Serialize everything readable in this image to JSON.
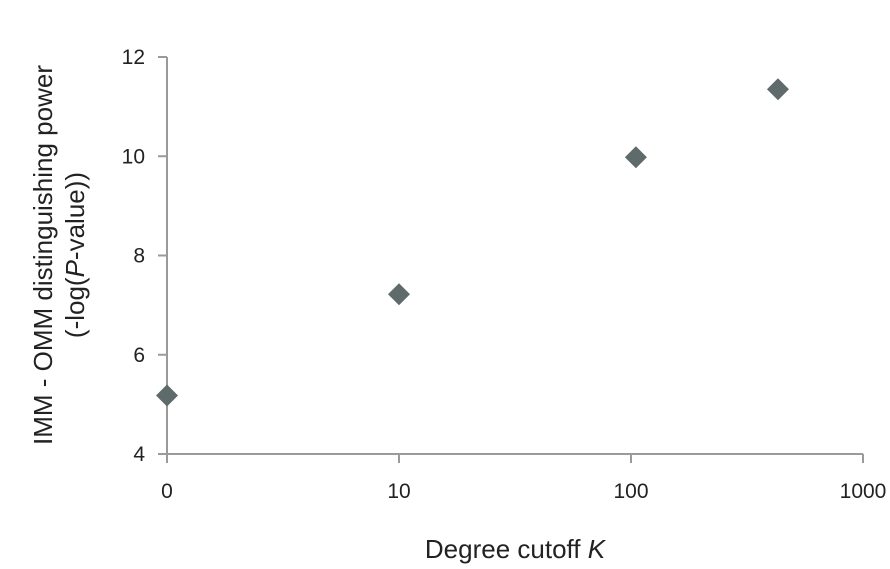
{
  "chart_data": {
    "type": "scatter",
    "xscale": "log",
    "xticks": [
      1,
      10,
      100,
      1000
    ],
    "xtick_labels": [
      "0",
      "10",
      "100",
      "1000"
    ],
    "xlim": [
      1,
      1000
    ],
    "yticks": [
      4,
      6,
      8,
      10,
      12
    ],
    "yticklabels": [
      "4",
      "6",
      "8",
      "10",
      "12"
    ],
    "ylim": [
      4,
      12
    ],
    "xlabel_main": "Degree cutoff ",
    "xlabel_italic": "K",
    "ylabel_line1": "IMM - OMM distinguishing power",
    "ylabel_line2_pre": "(-log(",
    "ylabel_line2_italic": "P",
    "ylabel_line2_post": "-value))",
    "grid": false,
    "legend": "none",
    "marker": "diamond",
    "marker_color": "#5f6b6b",
    "axis_color": "#9a9a9a",
    "series": [
      {
        "x": [
          1,
          10,
          105,
          430
        ],
        "y": [
          5.18,
          7.22,
          9.98,
          11.35
        ]
      }
    ]
  }
}
